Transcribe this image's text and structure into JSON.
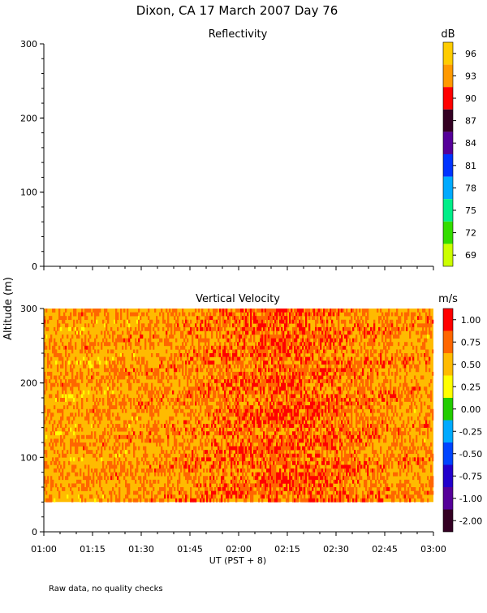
{
  "figure": {
    "title": "Dixon, CA 17 March 2007  Day  76",
    "ylabel": "Altitude (m)",
    "xlabel": "UT  (PST + 8)",
    "footnote": "Raw data, no quality checks"
  },
  "chart_data": [
    {
      "type": "heatmap",
      "title": "Reflectivity",
      "ylim": [
        0,
        300
      ],
      "y_ticks": [
        0,
        100,
        200,
        300
      ],
      "x_ticks": [
        "01:00",
        "01:15",
        "01:30",
        "01:45",
        "02:00",
        "02:15",
        "02:30",
        "02:45",
        "03:00"
      ],
      "values": [],
      "colorbar": {
        "unit": "dB",
        "labels": [
          "96",
          "93",
          "90",
          "87",
          "84",
          "81",
          "78",
          "75",
          "72",
          "69"
        ],
        "colors": [
          "#ffcc00",
          "#ff9900",
          "#ff0000",
          "#330022",
          "#550099",
          "#0033ff",
          "#00aaff",
          "#00ee88",
          "#33dd00",
          "#ccff00"
        ]
      }
    },
    {
      "type": "heatmap",
      "title": "Vertical Velocity",
      "ylim": [
        0,
        300
      ],
      "data_altitude_range": [
        40,
        300
      ],
      "y_ticks": [
        0,
        100,
        200,
        300
      ],
      "x_ticks": [
        "01:00",
        "01:15",
        "01:30",
        "01:45",
        "02:00",
        "02:15",
        "02:30",
        "02:45",
        "03:00"
      ],
      "dominant_values": "0.50 to 1.00 m/s, strongest 02:00-02:30",
      "colorbar": {
        "unit": "m/s",
        "labels": [
          "1.00",
          "0.75",
          "0.50",
          "0.25",
          "0.00",
          "-0.25",
          "-0.50",
          "-0.75",
          "-1.00",
          "-2.00"
        ],
        "colors": [
          "#ff0000",
          "#ff6600",
          "#ffbb00",
          "#ffff00",
          "#22cc00",
          "#00aaff",
          "#0044ff",
          "#2200cc",
          "#550099",
          "#330022"
        ]
      }
    }
  ]
}
